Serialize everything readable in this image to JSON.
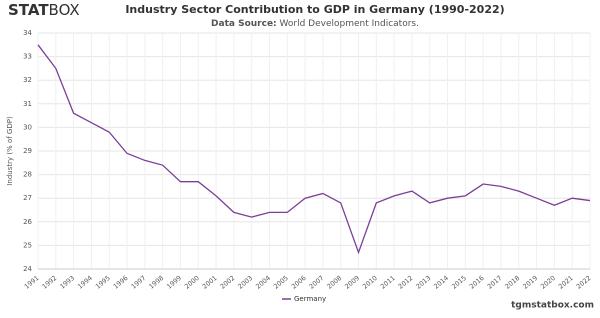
{
  "header": {
    "logo_bold": "STAT",
    "logo_light": "BOX"
  },
  "footer": "tgmstatbox.com",
  "chart_data": {
    "type": "line",
    "title": "Industry Sector Contribution to GDP in Germany (1990-2022)",
    "subtitle_label": "Data Source:",
    "subtitle": "World Development Indicators.",
    "y_label": "Industry (% of GDP)",
    "x": [
      1991,
      1992,
      1993,
      1994,
      1995,
      1996,
      1997,
      1998,
      1999,
      2000,
      2001,
      2002,
      2003,
      2004,
      2005,
      2006,
      2007,
      2008,
      2009,
      2010,
      2011,
      2012,
      2013,
      2014,
      2015,
      2016,
      2017,
      2018,
      2019,
      2020,
      2021,
      2022
    ],
    "series": [
      {
        "name": "Germany",
        "color": "#7b3f98",
        "values": [
          33.5,
          32.5,
          30.6,
          30.2,
          29.8,
          28.9,
          28.6,
          28.4,
          27.7,
          27.7,
          27.1,
          26.4,
          26.2,
          26.4,
          26.4,
          27.0,
          27.2,
          26.8,
          24.7,
          26.8,
          27.1,
          27.3,
          26.8,
          27.0,
          27.1,
          27.6,
          27.5,
          27.3,
          27.0,
          26.7,
          27.0,
          26.9
        ]
      }
    ],
    "xlim": [
      1991,
      2022
    ],
    "xticks": [
      1991,
      1992,
      1993,
      1994,
      1995,
      1996,
      1997,
      1998,
      1999,
      2000,
      2001,
      2002,
      2003,
      2004,
      2005,
      2006,
      2007,
      2008,
      2009,
      2010,
      2011,
      2012,
      2013,
      2014,
      2015,
      2016,
      2017,
      2018,
      2019,
      2020,
      2021,
      2022
    ],
    "ylim": [
      24,
      34
    ],
    "yticks": [
      24,
      25,
      26,
      27,
      28,
      29,
      30,
      31,
      32,
      33,
      34
    ],
    "grid": true
  }
}
